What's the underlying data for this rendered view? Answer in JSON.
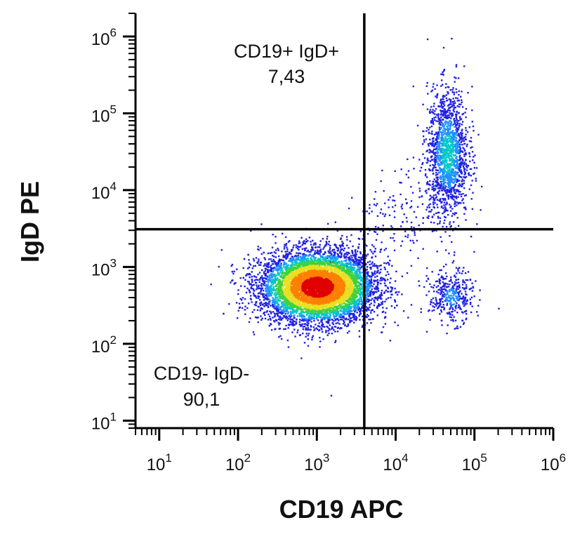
{
  "chart_data": {
    "type": "scatter",
    "title": "",
    "xlabel": "CD19 APC",
    "ylabel": "IgD PE",
    "x_scale": "log",
    "y_scale": "log",
    "xlim": [
      5,
      1000000
    ],
    "ylim": [
      8,
      2000000
    ],
    "x_ticks": [
      {
        "value": 10,
        "base": "10",
        "exp": "1"
      },
      {
        "value": 100,
        "base": "10",
        "exp": "2"
      },
      {
        "value": 1000,
        "base": "10",
        "exp": "3"
      },
      {
        "value": 10000,
        "base": "10",
        "exp": "4"
      },
      {
        "value": 100000,
        "base": "10",
        "exp": "5"
      },
      {
        "value": 1000000,
        "base": "10",
        "exp": "6"
      }
    ],
    "y_ticks": [
      {
        "value": 10,
        "base": "10",
        "exp": "1"
      },
      {
        "value": 100,
        "base": "10",
        "exp": "2"
      },
      {
        "value": 1000,
        "base": "10",
        "exp": "3"
      },
      {
        "value": 10000,
        "base": "10",
        "exp": "4"
      },
      {
        "value": 100000,
        "base": "10",
        "exp": "5"
      },
      {
        "value": 1000000,
        "base": "10",
        "exp": "6"
      }
    ],
    "gates": {
      "x_threshold": 4000,
      "y_threshold": 3100
    },
    "quadrants": [
      {
        "name": "CD19+ IgD+",
        "value": "7,43",
        "position": "top-left"
      },
      {
        "name": "CD19- IgD-",
        "value": "90,1",
        "position": "bottom-left"
      }
    ],
    "populations": [
      {
        "name": "CD19- IgD-",
        "x_center": 1000,
        "y_center": 560,
        "x_spread_decades": 0.36,
        "y_spread_decades": 0.23,
        "density": "high"
      },
      {
        "name": "CD19+ IgD+",
        "x_center": 45000,
        "y_center": 30000,
        "x_spread_decades": 0.13,
        "y_spread_decades": 0.42,
        "density": "medium"
      },
      {
        "name": "CD19+ IgD-",
        "x_center": 50000,
        "y_center": 420,
        "x_spread_decades": 0.14,
        "y_spread_decades": 0.17,
        "density": "low"
      }
    ],
    "density_colors": [
      "#2020e0",
      "#1e90ff",
      "#00c8c8",
      "#40d040",
      "#e8e020",
      "#ff8000",
      "#e00000"
    ],
    "grid": false
  }
}
